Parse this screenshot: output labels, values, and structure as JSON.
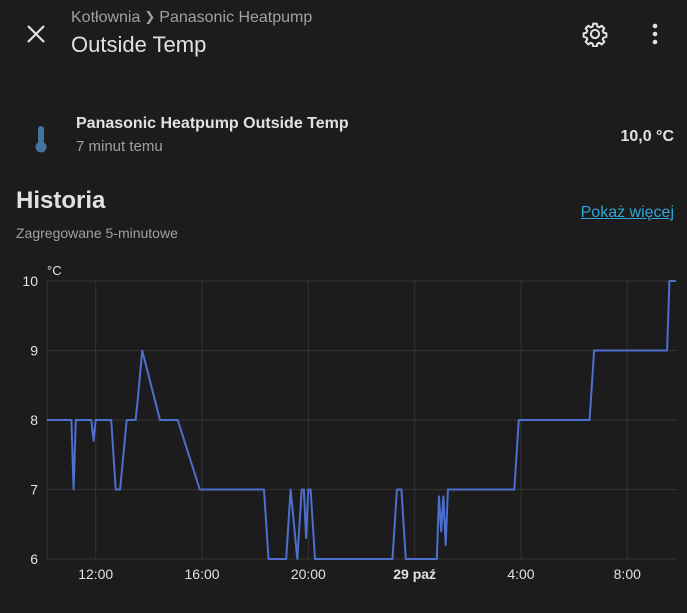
{
  "header": {
    "breadcrumb": [
      "Kotłownia",
      "Panasonic Heatpump"
    ],
    "title": "Outside Temp",
    "close_icon": "close-icon",
    "settings_icon": "gear-icon",
    "menu_icon": "more-vertical-icon"
  },
  "entity": {
    "icon": "thermometer-icon",
    "name": "Panasonic Heatpump Outside Temp",
    "last_changed": "7 minut temu",
    "state": "10,0 °C",
    "icon_color": "#44739e"
  },
  "history": {
    "title": "Historia",
    "subtitle": "Zagregowane 5-minutowe",
    "more_link": "Pokaż więcej"
  },
  "chart_data": {
    "type": "line",
    "ylabel": "°C",
    "ylim": [
      6,
      10
    ],
    "yticks": [
      "10",
      "9",
      "8",
      "7",
      "6"
    ],
    "xlim": [
      "10:10",
      "09:50"
    ],
    "xticks": [
      "12:00",
      "16:00",
      "20:00",
      "29 paź",
      "4:00",
      "8:00"
    ],
    "bold_xtick": "29 paź",
    "grid": true,
    "line_color": "#4d6fce",
    "series": [
      {
        "x": [
          "10:10",
          "11:05",
          "11:10",
          "11:15",
          "11:25",
          "11:50",
          "11:55",
          "12:00",
          "12:10",
          "12:35",
          "12:45",
          "12:55",
          "13:10",
          "13:25",
          "13:30",
          "13:35",
          "13:45",
          "14:25",
          "14:40",
          "14:45",
          "14:50",
          "14:55",
          "15:05",
          "15:55",
          "16:05",
          "16:15",
          "18:20",
          "18:30",
          "18:40",
          "19:10",
          "19:20",
          "19:35",
          "19:45",
          "19:50",
          "19:55",
          "20:00",
          "20:05",
          "20:15",
          "20:30",
          "20:40",
          "23:10",
          "23:20",
          "23:30",
          "23:40",
          "23:50",
          "0:50",
          "0:55",
          "1:00",
          "1:05",
          "1:10",
          "1:15",
          "1:20",
          "1:25",
          "3:45",
          "3:55",
          "6:35",
          "6:45",
          "9:30",
          "9:35",
          "9:45",
          "9:50"
        ],
        "y": [
          8,
          8,
          7,
          8,
          8,
          8,
          7.7,
          8,
          8,
          8,
          7,
          7,
          8,
          8,
          8,
          8.3,
          9,
          8,
          8,
          8,
          8,
          8,
          8,
          7,
          7,
          7,
          7,
          6,
          6,
          6,
          7,
          6,
          7,
          7,
          6.3,
          7,
          7,
          6,
          6,
          6,
          6,
          7,
          7,
          6,
          6,
          6,
          6.9,
          6.4,
          6.9,
          6.2,
          7,
          7,
          7,
          7,
          8,
          8,
          9,
          9,
          10,
          10,
          10
        ]
      }
    ]
  }
}
